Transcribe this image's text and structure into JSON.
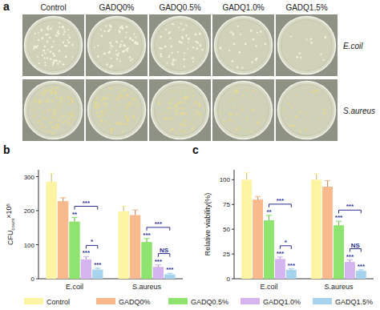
{
  "panels": [
    "a",
    "b",
    "c"
  ],
  "plates": {
    "columns": [
      "Control",
      "GADQ0%",
      "GADQ0.5%",
      "GADQ1.0%",
      "GADQ1.5%"
    ],
    "rows": [
      "E.coil",
      "S.aureus"
    ]
  },
  "chart_data": [
    {
      "type": "bar",
      "y_label": {
        "main": "CFU",
        "sub": "count",
        "times": "×10",
        "sup": "5"
      },
      "categories": [
        "E.coil",
        "S.aureus"
      ],
      "ylim": [
        0,
        320
      ],
      "yticks": [
        0,
        100,
        200,
        300
      ],
      "legend": "bottom",
      "series": [
        {
          "name": "Control",
          "color": "#fcf3a3",
          "values": [
            285,
            198
          ],
          "errors": [
            25,
            15
          ]
        },
        {
          "name": "GADQ0%",
          "color": "#f8b98c",
          "values": [
            228,
            187
          ],
          "errors": [
            10,
            15
          ]
        },
        {
          "name": "GADQ0.5%",
          "color": "#8fe46f",
          "values": [
            168,
            108
          ],
          "errors": [
            12,
            10
          ]
        },
        {
          "name": "GADQ1.0%",
          "color": "#d5b5ef",
          "values": [
            57,
            35
          ],
          "errors": [
            8,
            6
          ]
        },
        {
          "name": "GADQ1.5%",
          "color": "#a8d3ef",
          "values": [
            27,
            13
          ],
          "errors": [
            4,
            3
          ]
        }
      ],
      "annotations": [
        {
          "text": "**",
          "series": 2,
          "category": 0
        },
        {
          "text": "***",
          "series": 3,
          "category": 0
        },
        {
          "text": "***",
          "series": 4,
          "category": 0
        },
        {
          "text": "***",
          "series": 2,
          "category": 1
        },
        {
          "text": "***",
          "series": 3,
          "category": 1
        },
        {
          "text": "***",
          "series": 4,
          "category": 1
        }
      ],
      "brackets": [
        {
          "text": "***",
          "category": 0,
          "series": [
            2,
            4
          ]
        },
        {
          "text": "*",
          "category": 0,
          "series": [
            3,
            4
          ]
        },
        {
          "text": "***",
          "category": 1,
          "series": [
            2,
            4
          ]
        },
        {
          "text": "NS",
          "category": 1,
          "series": [
            3,
            4
          ]
        }
      ]
    },
    {
      "type": "bar",
      "y_label": {
        "main": "Relative viability(%)"
      },
      "categories": [
        "E.coil",
        "S.aureus"
      ],
      "ylim": [
        0,
        110
      ],
      "yticks": [
        0,
        25,
        50,
        75,
        100
      ],
      "series": [
        {
          "color": "#fcf3a3",
          "values": [
            100,
            100
          ],
          "errors": [
            7,
            6
          ]
        },
        {
          "color": "#f8b98c",
          "values": [
            80,
            93
          ],
          "errors": [
            3,
            6
          ]
        },
        {
          "color": "#8fe46f",
          "values": [
            59,
            54
          ],
          "errors": [
            5,
            4
          ]
        },
        {
          "color": "#d5b5ef",
          "values": [
            20,
            17
          ],
          "errors": [
            2,
            2
          ]
        },
        {
          "color": "#a8d3ef",
          "values": [
            9,
            8
          ],
          "errors": [
            1,
            1
          ]
        }
      ],
      "annotations": [
        {
          "text": "**",
          "series": 2,
          "category": 0
        },
        {
          "text": "***",
          "series": 3,
          "category": 0
        },
        {
          "text": "***",
          "series": 4,
          "category": 0
        },
        {
          "text": "***",
          "series": 2,
          "category": 1
        },
        {
          "text": "***",
          "series": 3,
          "category": 1
        },
        {
          "text": "***",
          "series": 4,
          "category": 1
        }
      ],
      "brackets": [
        {
          "text": "***",
          "category": 0,
          "series": [
            2,
            4
          ]
        },
        {
          "text": "*",
          "category": 0,
          "series": [
            3,
            4
          ]
        },
        {
          "text": "***",
          "category": 1,
          "series": [
            2,
            4
          ]
        },
        {
          "text": "NS",
          "category": 1,
          "series": [
            3,
            4
          ]
        }
      ]
    }
  ]
}
